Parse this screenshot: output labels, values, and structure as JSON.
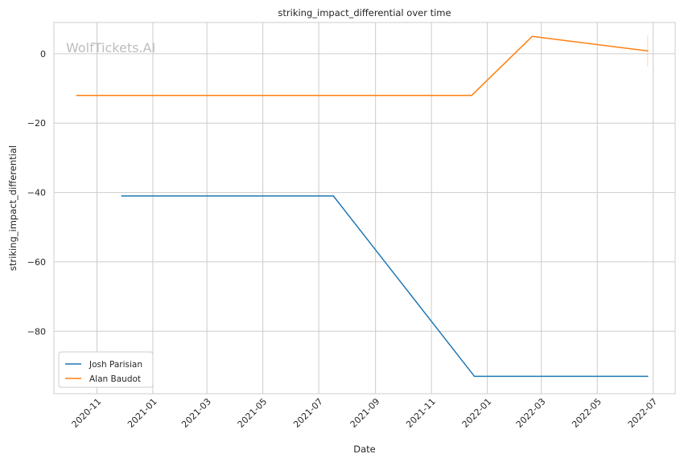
{
  "watermark": "WolfTickets.AI",
  "chart_data": {
    "type": "line",
    "title": "striking_impact_differential over time",
    "xlabel": "Date",
    "ylabel": "striking_impact_differential",
    "x_tick_labels": [
      "2020-11",
      "2021-01",
      "2021-03",
      "2021-05",
      "2021-07",
      "2021-09",
      "2021-11",
      "2022-01",
      "2022-03",
      "2022-05",
      "2022-07"
    ],
    "x_tick_dates": [
      "2020-11-01",
      "2021-01-01",
      "2021-03-01",
      "2021-05-01",
      "2021-07-01",
      "2021-09-01",
      "2021-11-01",
      "2022-01-01",
      "2022-03-01",
      "2022-05-01",
      "2022-07-01"
    ],
    "y_ticks": [
      0,
      -20,
      -40,
      -60,
      -80
    ],
    "y_tick_labels": [
      "0",
      "−20",
      "−40",
      "−60",
      "−80"
    ],
    "ylim": [
      -98,
      9
    ],
    "xlim": [
      "2020-09-15",
      "2022-07-25"
    ],
    "grid": true,
    "legend_position": "lower-left",
    "series": [
      {
        "name": "Josh Parisian",
        "color": "#1f77b4",
        "points": [
          {
            "x": "2020-11-28",
            "y": -41
          },
          {
            "x": "2021-07-17",
            "y": -41
          },
          {
            "x": "2021-12-18",
            "y": -93
          },
          {
            "x": "2022-06-25",
            "y": -93
          }
        ]
      },
      {
        "name": "Alan Baudot",
        "color": "#ff7f0e",
        "points": [
          {
            "x": "2020-10-10",
            "y": -12
          },
          {
            "x": "2021-12-15",
            "y": -12
          },
          {
            "x": "2022-02-19",
            "y": 5
          },
          {
            "x": "2022-06-25",
            "y": 0.8
          }
        ]
      }
    ]
  }
}
